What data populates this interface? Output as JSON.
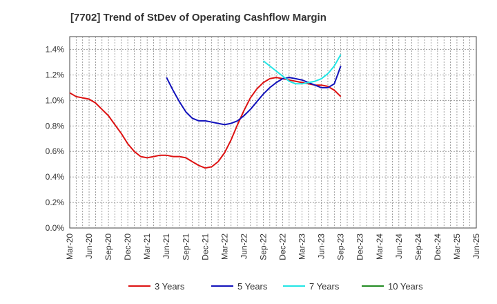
{
  "chart_data": {
    "type": "line",
    "title": "[7702]  Trend of StDev of Operating Cashflow Margin",
    "xlabel": "",
    "ylabel": "",
    "ylim": [
      0,
      0.015
    ],
    "y_ticks": [
      "0.0%",
      "0.2%",
      "0.4%",
      "0.6%",
      "0.8%",
      "1.0%",
      "1.2%",
      "1.4%"
    ],
    "y_tick_values": [
      0,
      0.002,
      0.004,
      0.006,
      0.008,
      0.01,
      0.012,
      0.014
    ],
    "x_ticks": [
      "Mar-20",
      "Jun-20",
      "Sep-20",
      "Dec-20",
      "Mar-21",
      "Jun-21",
      "Sep-21",
      "Dec-21",
      "Mar-22",
      "Jun-22",
      "Sep-22",
      "Dec-22",
      "Mar-23",
      "Jun-23",
      "Sep-23",
      "Dec-23",
      "Mar-24",
      "Jun-24",
      "Sep-24",
      "Dec-24",
      "Mar-25",
      "Jun-25"
    ],
    "grid": true,
    "legend_position": "bottom",
    "series": [
      {
        "name": "3 Years",
        "color": "#dd1111",
        "values": [
          0.0106,
          0.0103,
          0.0102,
          0.0101,
          0.0098,
          0.0093,
          0.0088,
          0.0081,
          0.0074,
          0.0066,
          0.006,
          0.0056,
          0.0055,
          0.0056,
          0.0057,
          0.0057,
          0.0056,
          0.0056,
          0.0055,
          0.0052,
          0.0049,
          0.0047,
          0.0048,
          0.0052,
          0.0059,
          0.0069,
          0.0081,
          0.0092,
          0.0102,
          0.0109,
          0.0114,
          0.0117,
          0.0118,
          0.0117,
          0.0116,
          0.0115,
          0.0114,
          0.0113,
          0.0112,
          0.0112,
          0.0111,
          0.0108,
          0.0103
        ]
      },
      {
        "name": "5 Years",
        "color": "#1111bb",
        "values": [
          null,
          null,
          null,
          null,
          null,
          null,
          null,
          null,
          null,
          null,
          null,
          null,
          null,
          null,
          null,
          0.0118,
          0.0108,
          0.0099,
          0.0091,
          0.0086,
          0.0084,
          0.0084,
          0.0083,
          0.0082,
          0.0081,
          0.0082,
          0.0084,
          0.0088,
          0.0093,
          0.0099,
          0.0105,
          0.011,
          0.0114,
          0.0117,
          0.0118,
          0.0117,
          0.0116,
          0.0114,
          0.0112,
          0.011,
          0.011,
          0.0113,
          0.0127
        ]
      },
      {
        "name": "7 Years",
        "color": "#22e5e5",
        "values": [
          null,
          null,
          null,
          null,
          null,
          null,
          null,
          null,
          null,
          null,
          null,
          null,
          null,
          null,
          null,
          null,
          null,
          null,
          null,
          null,
          null,
          null,
          null,
          null,
          null,
          null,
          null,
          null,
          null,
          null,
          0.0131,
          0.0127,
          0.0123,
          0.0119,
          0.0115,
          0.0113,
          0.0113,
          0.0114,
          0.0115,
          0.0117,
          0.0121,
          0.0127,
          0.0136
        ]
      },
      {
        "name": "10 Years",
        "color": "#228b22",
        "values": []
      }
    ]
  }
}
